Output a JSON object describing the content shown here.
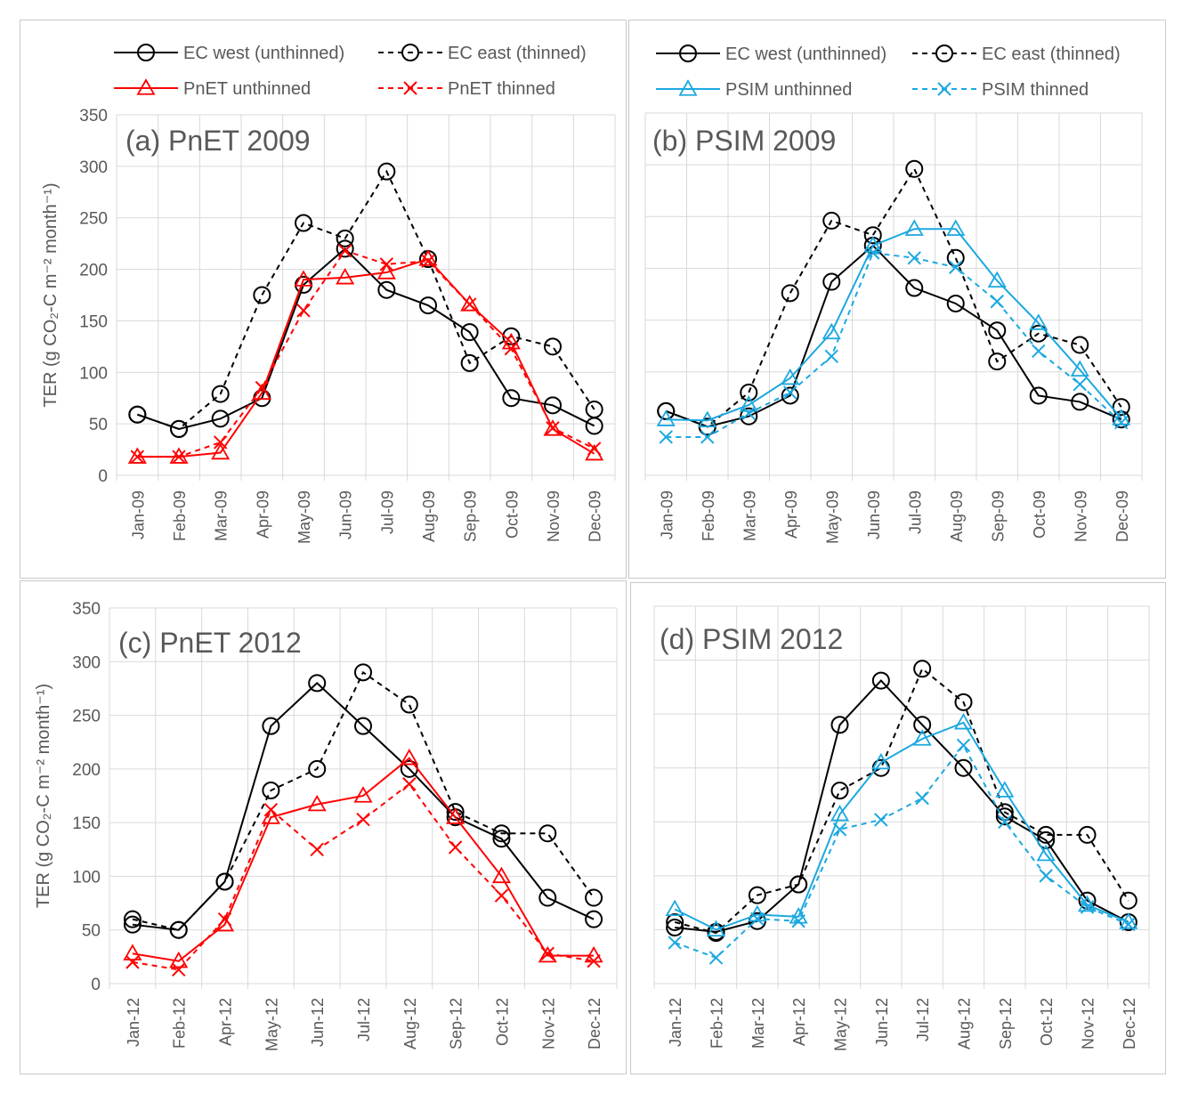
{
  "colors": {
    "ec": "#000000",
    "pnet": "#ff0000",
    "psim": "#1ba8e0",
    "grid": "#d9d9d9",
    "text": "#595959"
  },
  "legend": {
    "ec_west": "EC west (unthinned)",
    "ec_east": "EC east (thinned)",
    "pnet_unthinned": "PnET unthinned",
    "pnet_thinned": "PnET thinned",
    "psim_unthinned": "PSIM unthinned",
    "psim_thinned": "PSIM thinned"
  },
  "y_axis": {
    "label": "TER (g CO₂-C m⁻² month⁻¹)",
    "ylim": [
      0,
      350
    ],
    "ticks": [
      "0",
      "50",
      "100",
      "150",
      "200",
      "250",
      "300",
      "350"
    ]
  },
  "chart_data": [
    {
      "id": "a",
      "type": "line",
      "title": "(a) PnET 2009",
      "categories": [
        "Jan-09",
        "Feb-09",
        "Mar-09",
        "Apr-09",
        "May-09",
        "Jun-09",
        "Jul-09",
        "Aug-09",
        "Sep-09",
        "Oct-09",
        "Nov-09",
        "Dec-09"
      ],
      "ylim": [
        0,
        350
      ],
      "series": [
        {
          "name": "EC west (unthinned)",
          "key": "ec_west",
          "values": [
            59,
            45,
            55,
            75,
            185,
            220,
            180,
            165,
            139,
            75,
            68,
            48
          ]
        },
        {
          "name": "EC east (thinned)",
          "key": "ec_east",
          "values": [
            59,
            45,
            79,
            175,
            245,
            230,
            295,
            210,
            109,
            135,
            125,
            64
          ]
        },
        {
          "name": "PnET unthinned",
          "key": "model_un",
          "values": [
            18,
            18,
            22,
            80,
            190,
            192,
            197,
            210,
            166,
            129,
            45,
            21
          ]
        },
        {
          "name": "PnET thinned",
          "key": "model_th",
          "values": [
            18,
            18,
            32,
            85,
            160,
            218,
            205,
            208,
            166,
            123,
            46,
            26
          ]
        }
      ]
    },
    {
      "id": "b",
      "type": "line",
      "title": "(b) PSIM 2009",
      "categories": [
        "Jan-09",
        "Feb-09",
        "Mar-09",
        "Apr-09",
        "May-09",
        "Jun-09",
        "Jul-09",
        "Aug-09",
        "Sep-09",
        "Oct-09",
        "Nov-09",
        "Dec-09"
      ],
      "ylim": [
        0,
        350
      ],
      "series": [
        {
          "name": "EC west (unthinned)",
          "key": "ec_west",
          "values": [
            62,
            47,
            57,
            77,
            187,
            222,
            181,
            166,
            140,
            77,
            71,
            54
          ]
        },
        {
          "name": "EC east (thinned)",
          "key": "ec_east",
          "values": [
            62,
            47,
            80,
            176,
            246,
            232,
            296,
            210,
            110,
            137,
            126,
            66
          ]
        },
        {
          "name": "PSIM unthinned",
          "key": "model_un",
          "values": [
            54,
            53,
            68,
            94,
            138,
            222,
            238,
            238,
            188,
            147,
            102,
            55
          ]
        },
        {
          "name": "PSIM thinned",
          "key": "model_th",
          "values": [
            37,
            37,
            60,
            80,
            115,
            215,
            210,
            201,
            168,
            120,
            88,
            51
          ]
        }
      ]
    },
    {
      "id": "c",
      "type": "line",
      "title": "(c) PnET 2012",
      "categories": [
        "Jan-12",
        "Feb-12",
        "Apr-12",
        "May-12",
        "Jun-12",
        "Jul-12",
        "Aug-12",
        "Sep-12",
        "Oct-12",
        "Nov-12",
        "Dec-12"
      ],
      "ylim": [
        0,
        350
      ],
      "series": [
        {
          "name": "EC west (unthinned)",
          "key": "ec_west",
          "values": [
            55,
            50,
            95,
            240,
            280,
            240,
            200,
            155,
            135,
            80,
            60
          ]
        },
        {
          "name": "EC east (thinned)",
          "key": "ec_east",
          "values": [
            60,
            50,
            95,
            180,
            200,
            290,
            260,
            160,
            140,
            140,
            80
          ]
        },
        {
          "name": "PnET unthinned",
          "key": "model_un",
          "values": [
            28,
            21,
            55,
            155,
            167,
            175,
            210,
            155,
            100,
            26,
            26
          ]
        },
        {
          "name": "PnET thinned",
          "key": "model_th",
          "values": [
            20,
            13,
            60,
            162,
            125,
            153,
            186,
            127,
            82,
            28,
            21
          ]
        }
      ]
    },
    {
      "id": "d",
      "type": "line",
      "title": "(d) PSIM 2012",
      "categories": [
        "Jan-12",
        "Feb-12",
        "Mar-12",
        "Apr-12",
        "May-12",
        "Jun-12",
        "Jul-12",
        "Aug-12",
        "Sep-12",
        "Oct-12",
        "Nov-12",
        "Dec-12"
      ],
      "ylim": [
        0,
        350
      ],
      "series": [
        {
          "name": "EC west (unthinned)",
          "key": "ec_west",
          "values": [
            52,
            48,
            58,
            92,
            240,
            281,
            240,
            200,
            155,
            133,
            77,
            57
          ]
        },
        {
          "name": "EC east (thinned)",
          "key": "ec_east",
          "values": [
            57,
            47,
            82,
            92,
            179,
            200,
            292,
            261,
            159,
            138,
            138,
            77
          ]
        },
        {
          "name": "PSIM unthinned",
          "key": "model_un",
          "values": [
            69,
            50,
            64,
            62,
            157,
            205,
            227,
            242,
            179,
            120,
            73,
            57
          ]
        },
        {
          "name": "PSIM thinned",
          "key": "model_th",
          "values": [
            38,
            24,
            60,
            58,
            143,
            152,
            172,
            221,
            150,
            100,
            71,
            55
          ]
        }
      ]
    }
  ]
}
